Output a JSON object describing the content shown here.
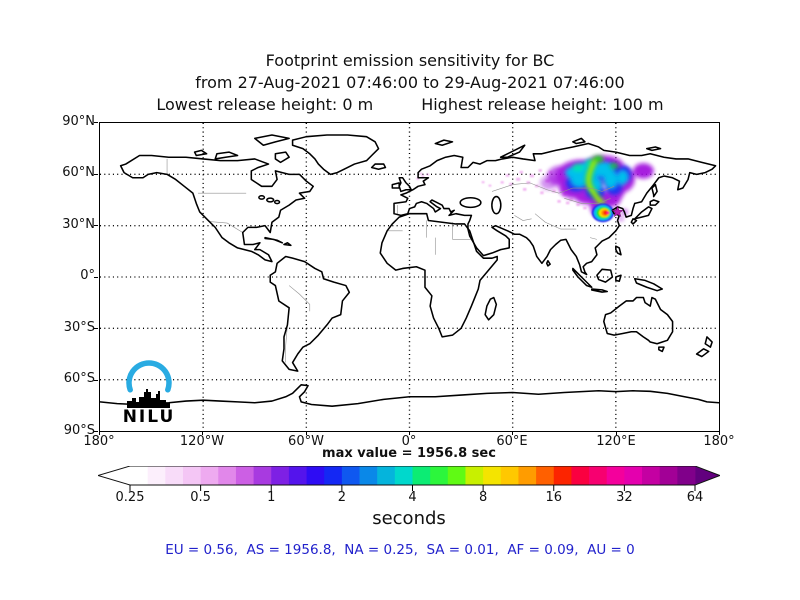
{
  "title": "Footprint emission sensitivity for BC",
  "subtitle": "from 27-Aug-2021 07:46:00 to 29-Aug-2021 07:46:00",
  "release_heights": {
    "lowest": "Lowest release height: 0 m",
    "highest": "Highest release height: 100 m"
  },
  "map": {
    "lat_labels": [
      "90°N",
      "60°N",
      "30°N",
      "0°",
      "30°S",
      "60°S",
      "90°S"
    ],
    "lon_labels": [
      "180°",
      "120°W",
      "60°W",
      "0°",
      "60°E",
      "120°E",
      "180°"
    ],
    "logo": {
      "text": "NILU",
      "arc_color": "#29abe2"
    }
  },
  "colorbar": {
    "max_value_label": "max value = 1956.8 sec",
    "units_label": "seconds",
    "tick_labels": [
      "0.25",
      "0.5",
      "1",
      "2",
      "4",
      "8",
      "16",
      "32",
      "64"
    ],
    "left_arrow_color": "#ffffff",
    "right_arrow_color": "#62007e",
    "colors": [
      "#ffffff",
      "#fceffc",
      "#f8dcf9",
      "#f4c6f5",
      "#eeaaf0",
      "#e187ea",
      "#cc5fe4",
      "#a83ae0",
      "#7e20e4",
      "#5414ec",
      "#2e0cf4",
      "#1428f4",
      "#0f58f0",
      "#0a88e8",
      "#05b4dc",
      "#00d8cc",
      "#0cec74",
      "#2cf63c",
      "#60fa14",
      "#c8f000",
      "#f4e400",
      "#ffc800",
      "#ff9c00",
      "#ff6000",
      "#fc2400",
      "#fa0040",
      "#f70070",
      "#f4009c",
      "#e400ae",
      "#c400a2",
      "#a20096",
      "#80008a"
    ]
  },
  "footer": {
    "region_values_text": "EU = 0.56,  AS = 1956.8,  NA = 0.25,  SA = 0.01,  AF = 0.09,  AU = 0",
    "text_color": "#2222cc"
  },
  "chart_data": {
    "type": "heatmap",
    "title": "Footprint emission sensitivity for BC",
    "period_start": "27-Aug-2021 07:46:00",
    "period_end": "29-Aug-2021 07:46:00",
    "lowest_release_height_m": 0,
    "highest_release_height_m": 100,
    "units": "seconds",
    "max_value_sec": 1956.8,
    "scale_type": "log2",
    "scale_ticks_sec": [
      0.25,
      0.5,
      1,
      2,
      4,
      8,
      16,
      32,
      64
    ],
    "region_totals_sec": {
      "EU": 0.56,
      "AS": 1956.8,
      "NA": 0.25,
      "SA": 0.01,
      "AF": 0.09,
      "AU": 0
    },
    "projection": "equirectangular",
    "lon_range": [
      -180,
      180
    ],
    "lat_range": [
      -90,
      90
    ],
    "lon_gridlines_deg": 60,
    "lat_gridlines_deg": 30,
    "grid": true,
    "plume": {
      "description": "Emission-sensitivity plume over eastern Siberia and northeast Asia; highest values (yellow-orange-red-magenta) concentrated near the release point, diffuse violet fringe extending west across central Russia",
      "lon_range": [
        55,
        142
      ],
      "lat_range": [
        30,
        74
      ],
      "release_point": {
        "lon": 121,
        "lat": 38,
        "marker": "star",
        "color": "#b41eb4"
      }
    }
  }
}
